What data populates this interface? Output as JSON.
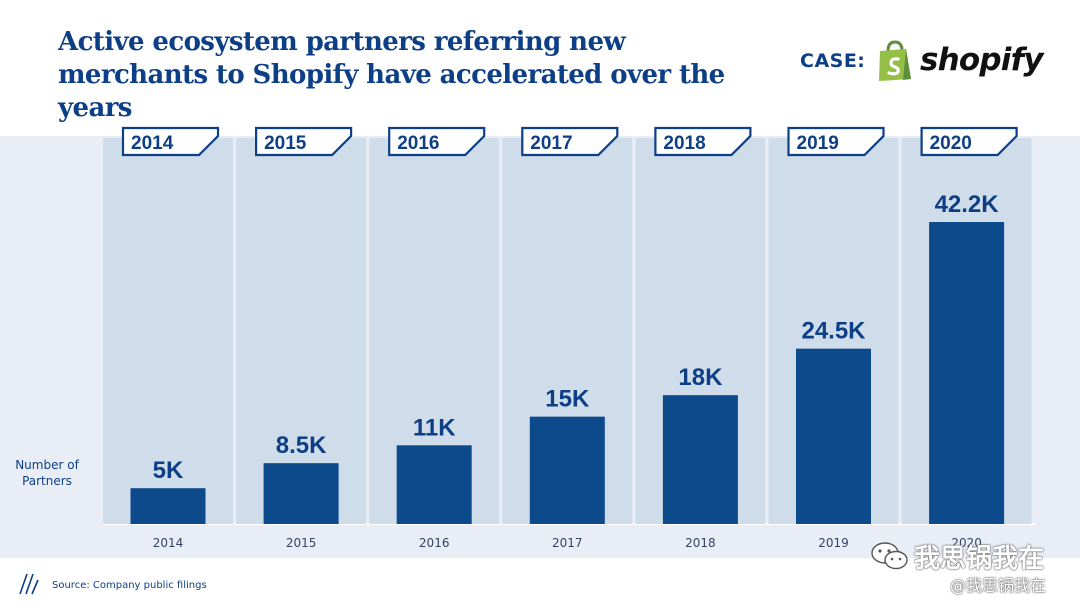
{
  "header": {
    "title": "Active ecosystem partners referring new merchants to Shopify have accelerated over the years",
    "case_label": "CASE:",
    "brand_name": "shopify"
  },
  "chart_data": {
    "type": "bar",
    "categories": [
      "2014",
      "2015",
      "2016",
      "2017",
      "2018",
      "2019",
      "2020"
    ],
    "values": [
      5,
      8.5,
      11,
      15,
      18,
      24.5,
      42.2
    ],
    "data_labels": [
      "5K",
      "8.5K",
      "11K",
      "15K",
      "18K",
      "24.5K",
      "42.2K"
    ],
    "ylabel": "Number of Partners",
    "ylim": [
      0,
      45
    ],
    "colors": {
      "bar": "#0d4a8c",
      "column_bg": "#cfdcea",
      "band_bg": "#e9eef6",
      "text": "#0d3f86"
    }
  },
  "footer": {
    "source": "Source: Company public filings"
  },
  "watermark": {
    "line1": "我思锅我在",
    "line2": "@我思锅我在"
  }
}
